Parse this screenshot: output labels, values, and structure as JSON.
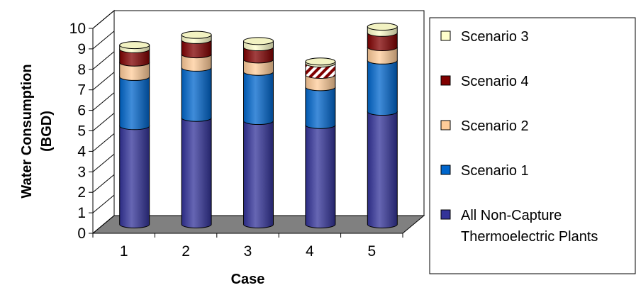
{
  "chart_data": {
    "type": "bar",
    "stacked": true,
    "style": "3d-cylinder",
    "categories": [
      "1",
      "2",
      "3",
      "4",
      "5"
    ],
    "xlabel": "Case",
    "ylabel": "Water Consumption (BGD)",
    "ylabel_lines": [
      "Water Consumption",
      "(BGD)"
    ],
    "ylim": [
      0,
      10
    ],
    "yticks": [
      "0",
      "1",
      "2",
      "3",
      "4",
      "5",
      "6",
      "7",
      "8",
      "9",
      "10"
    ],
    "grid": false,
    "legend_position": "right",
    "series": [
      {
        "name": "All Non-Capture Thermoelectric Plants",
        "name_lines": [
          "All Non-Capture",
          "Thermoelectric Plants"
        ],
        "color": "#333399",
        "values": [
          4.8,
          5.2,
          5.05,
          4.85,
          5.5
        ]
      },
      {
        "name": "Scenario 1",
        "color": "#0066CC",
        "values": [
          2.4,
          2.45,
          2.4,
          1.85,
          2.5
        ]
      },
      {
        "name": "Scenario 2",
        "color": "#FFCC99",
        "values": [
          0.7,
          0.65,
          0.6,
          0.6,
          0.65
        ]
      },
      {
        "name": "Scenario 4",
        "color": "#800000",
        "values": [
          0.65,
          0.7,
          0.6,
          0.55,
          0.7
        ]
      },
      {
        "name": "Scenario 3",
        "color": "#FFFFCC",
        "values": [
          0.2,
          0.25,
          0.3,
          0.1,
          0.3
        ]
      }
    ],
    "legend_order": [
      4,
      3,
      2,
      1,
      0
    ],
    "colors": {
      "floor": "#808080",
      "back_wall": "#ffffff",
      "hatched_segment": "#800000"
    }
  }
}
